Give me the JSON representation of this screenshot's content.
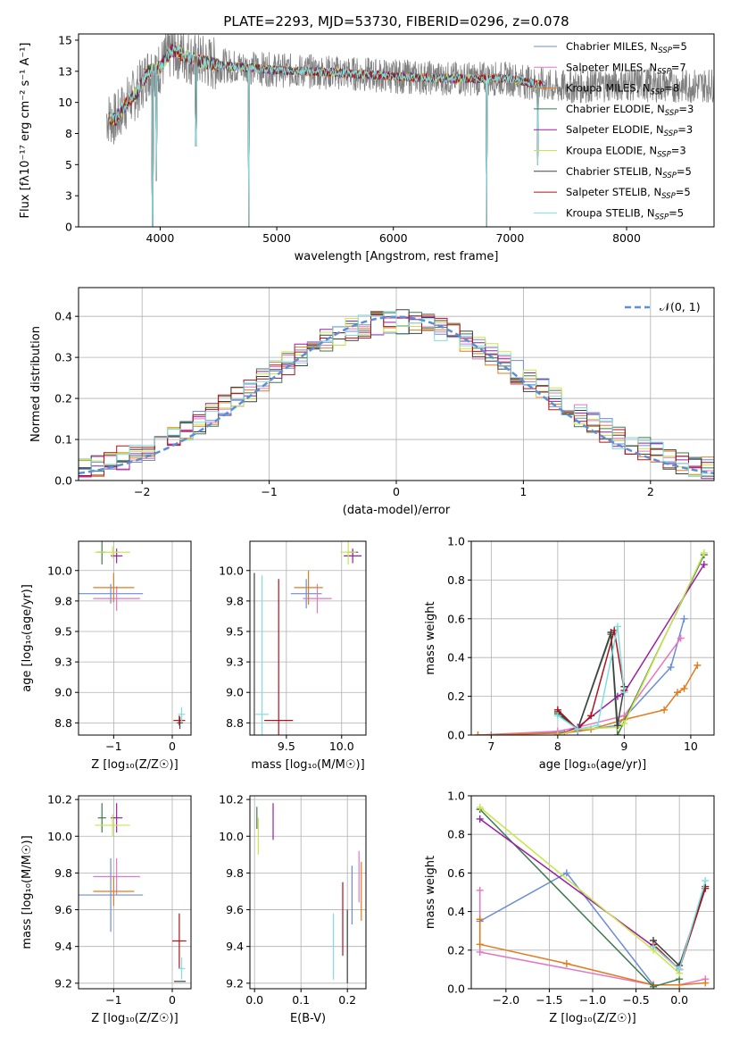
{
  "figure_title": "PLATE=2293, MJD=53730, FIBERID=0296, z=0.078",
  "colors": {
    "Chabrier MILES": "#6b8dd6",
    "Salpeter MILES": "#e377c2",
    "Kroupa MILES": "#e07b20",
    "Chabrier ELODIE": "#3d7a4e",
    "Salpeter ELODIE": "#9a1fa3",
    "Kroupa ELODIE": "#c8e64a",
    "Chabrier STELIB": "#404040",
    "Salpeter STELIB": "#b0121b",
    "Kroupa STELIB": "#7fdde0",
    "data": "#808080",
    "normal": "#5b8fd6",
    "grid": "#b0b0b0"
  },
  "chart_data": [
    {
      "id": "spectrum",
      "type": "line",
      "title": "PLATE=2293, MJD=53730, FIBERID=0296, z=0.078",
      "xlabel": "wavelength [Angstrom, rest frame]",
      "ylabel": "Flux [fλ10⁻¹⁷ erg cm⁻² s⁻¹ A⁻¹]",
      "xlim": [
        3300,
        8750
      ],
      "ylim": [
        0,
        15.5
      ],
      "xticks": [
        4000,
        5000,
        6000,
        7000,
        8000
      ],
      "yticks": [
        0.0,
        2.5,
        5.0,
        7.5,
        10.0,
        12.5,
        15.0
      ],
      "grid": false,
      "legend_position": "right",
      "legend": [
        {
          "model": "Chabrier MILES",
          "label": "Chabrier MILES, N",
          "sub": "SSP",
          "tail": "=5"
        },
        {
          "model": "Salpeter MILES",
          "label": "Salpeter MILES, N",
          "sub": "SSP",
          "tail": "=7"
        },
        {
          "model": "Kroupa MILES",
          "label": "Kroupa MILES, N",
          "sub": "SSP",
          "tail": "=8"
        },
        {
          "model": "Chabrier ELODIE",
          "label": "Chabrier ELODIE, N",
          "sub": "SSP",
          "tail": "=3"
        },
        {
          "model": "Salpeter ELODIE",
          "label": "Salpeter ELODIE, N",
          "sub": "SSP",
          "tail": "=3"
        },
        {
          "model": "Kroupa ELODIE",
          "label": "Kroupa ELODIE, N",
          "sub": "SSP",
          "tail": "=3"
        },
        {
          "model": "Chabrier STELIB",
          "label": "Chabrier STELIB, N",
          "sub": "SSP",
          "tail": "=5"
        },
        {
          "model": "Salpeter STELIB",
          "label": "Salpeter STELIB, N",
          "sub": "SSP",
          "tail": "=5"
        },
        {
          "model": "Kroupa STELIB",
          "label": "Kroupa STELIB, N",
          "sub": "SSP",
          "tail": "=5"
        }
      ],
      "continuum": [
        [
          3550,
          8.8
        ],
        [
          3620,
          8.6
        ],
        [
          3700,
          9.8
        ],
        [
          3800,
          10.8
        ],
        [
          3900,
          12.5
        ],
        [
          4000,
          12.8
        ],
        [
          4100,
          14.2
        ],
        [
          4300,
          13.4
        ],
        [
          4500,
          13.0
        ],
        [
          5000,
          12.6
        ],
        [
          5500,
          12.4
        ],
        [
          6000,
          12.1
        ],
        [
          6500,
          11.9
        ],
        [
          7000,
          11.9
        ],
        [
          7400,
          11.2
        ],
        [
          8000,
          11.5
        ],
        [
          8500,
          11.3
        ],
        [
          8750,
          11.4
        ]
      ],
      "dips": [
        [
          3933,
          0
        ],
        [
          4760,
          0
        ],
        [
          6800,
          0
        ],
        [
          4305,
          6.5
        ],
        [
          3968,
          3.7
        ],
        [
          7238,
          5.0
        ]
      ]
    },
    {
      "id": "residuals",
      "type": "histogram",
      "xlabel": "(data-model)/error",
      "ylabel": "Normed distribution",
      "xlim": [
        -2.5,
        2.5
      ],
      "ylim": [
        0,
        0.47
      ],
      "xticks": [
        -2,
        -1,
        0,
        1,
        2
      ],
      "yticks": [
        0.0,
        0.1,
        0.2,
        0.3,
        0.4
      ],
      "grid": true,
      "legend_position": "top-right",
      "reference": {
        "label": "𝒩(0, 1)",
        "mean": 0,
        "sigma": 1
      },
      "bin_width": 0.1
    },
    {
      "id": "age-vs-Z",
      "type": "errorbar",
      "xlabel": "Z [log₁₀(Z/Z☉)]",
      "ylabel": "age  [log₁₀(age/yr)]",
      "xlim": [
        -1.6,
        0.32
      ],
      "ylim": [
        8.65,
        10.24
      ],
      "xticks": [
        -1,
        0
      ],
      "yticks": [
        8.75,
        9.0,
        9.25,
        9.5,
        9.75,
        10.0
      ],
      "grid": true,
      "points": [
        {
          "model": "Chabrier MILES",
          "x": -1.05,
          "y": 9.81,
          "xerr": 0.55,
          "yerr": 0.08
        },
        {
          "model": "Salpeter MILES",
          "x": -0.95,
          "y": 9.77,
          "xerr": 0.4,
          "yerr": 0.1
        },
        {
          "model": "Kroupa MILES",
          "x": -1.0,
          "y": 9.86,
          "xerr": 0.35,
          "yerr": 0.12
        },
        {
          "model": "Chabrier ELODIE",
          "x": -1.2,
          "y": 10.15,
          "xerr": 0.07,
          "yerr": 0.1
        },
        {
          "model": "Salpeter ELODIE",
          "x": -0.95,
          "y": 10.12,
          "xerr": 0.1,
          "yerr": 0.06
        },
        {
          "model": "Kroupa ELODIE",
          "x": -1.02,
          "y": 10.15,
          "xerr": 0.3,
          "yerr": 0.05
        },
        {
          "model": "Chabrier STELIB",
          "x": 0.13,
          "y": 8.75,
          "xerr": 0.05,
          "yerr": 0.05
        },
        {
          "model": "Salpeter STELIB",
          "x": 0.12,
          "y": 8.77,
          "xerr": 0.1,
          "yerr": 0.04
        },
        {
          "model": "Kroupa STELIB",
          "x": 0.16,
          "y": 8.82,
          "xerr": 0.06,
          "yerr": 0.06
        }
      ]
    },
    {
      "id": "age-vs-mass",
      "type": "errorbar",
      "xlabel": "mass [log₁₀(M/M☉)]",
      "ylabel": "",
      "xlim": [
        9.17,
        10.22
      ],
      "ylim": [
        8.65,
        10.24
      ],
      "xticks": [
        9.5,
        10.0
      ],
      "yticks": [
        8.75,
        9.0,
        9.25,
        9.5,
        9.75,
        10.0
      ],
      "grid": true,
      "points": [
        {
          "model": "Chabrier MILES",
          "x": 9.68,
          "y": 9.81,
          "xerr": 0.14,
          "yerr": 0.12
        },
        {
          "model": "Salpeter MILES",
          "x": 9.78,
          "y": 9.77,
          "xerr": 0.13,
          "yerr": 0.12
        },
        {
          "model": "Kroupa MILES",
          "x": 9.7,
          "y": 9.86,
          "xerr": 0.13,
          "yerr": 0.14
        },
        {
          "model": "Chabrier ELODIE",
          "x": 10.1,
          "y": 10.15,
          "xerr": 0.05,
          "yerr": 0.02
        },
        {
          "model": "Salpeter ELODIE",
          "x": 10.1,
          "y": 10.12,
          "xerr": 0.08,
          "yerr": 0.06
        },
        {
          "model": "Kroupa ELODIE",
          "x": 10.06,
          "y": 10.15,
          "xerr": 0.07,
          "yerr": 0.1
        },
        {
          "model": "Chabrier STELIB",
          "x": 9.21,
          "y": 8.75,
          "xerr": 0.0,
          "yerr": 1.23
        },
        {
          "model": "Salpeter STELIB",
          "x": 9.43,
          "y": 8.77,
          "xerr": 0.13,
          "yerr": 1.16
        },
        {
          "model": "Kroupa STELIB",
          "x": 9.28,
          "y": 8.82,
          "xerr": 0.06,
          "yerr": 1.14
        }
      ]
    },
    {
      "id": "weight-vs-age",
      "type": "line",
      "xlabel": "age  [log₁₀(age/yr)]",
      "ylabel": "mass weight",
      "xlim": [
        6.7,
        10.35
      ],
      "ylim": [
        0,
        1.0
      ],
      "xticks": [
        7,
        8,
        9,
        10
      ],
      "yticks": [
        0.0,
        0.2,
        0.4,
        0.6,
        0.8,
        1.0
      ],
      "grid": true,
      "series": [
        {
          "model": "Chabrier MILES",
          "x": [
            7.0,
            8.3,
            8.9,
            9.7,
            9.9
          ],
          "y": [
            0.0,
            0.02,
            0.05,
            0.35,
            0.6
          ]
        },
        {
          "model": "Salpeter MILES",
          "x": [
            6.8,
            8.0,
            8.3,
            9.0,
            9.85
          ],
          "y": [
            0.0,
            0.02,
            0.04,
            0.1,
            0.5
          ]
        },
        {
          "model": "Kroupa MILES",
          "x": [
            6.8,
            8.1,
            8.5,
            9.0,
            9.6,
            9.8,
            9.9,
            10.1
          ],
          "y": [
            0.0,
            0.01,
            0.03,
            0.08,
            0.13,
            0.22,
            0.24,
            0.36
          ]
        },
        {
          "model": "Chabrier ELODIE",
          "x": [
            8.0,
            8.3,
            8.8,
            8.9,
            10.2
          ],
          "y": [
            0.11,
            0.03,
            0.52,
            0.0,
            0.93
          ]
        },
        {
          "model": "Salpeter ELODIE",
          "x": [
            8.0,
            8.3,
            8.9,
            9.0,
            10.2
          ],
          "y": [
            0.0,
            0.04,
            0.2,
            0.22,
            0.88
          ]
        },
        {
          "model": "Kroupa ELODIE",
          "x": [
            8.0,
            8.3,
            8.9,
            9.0,
            10.2
          ],
          "y": [
            0.0,
            0.03,
            0.04,
            0.06,
            0.94
          ]
        },
        {
          "model": "Chabrier STELIB",
          "x": [
            8.0,
            8.3,
            8.8,
            8.9,
            9.0
          ],
          "y": [
            0.12,
            0.03,
            0.53,
            0.05,
            0.25
          ]
        },
        {
          "model": "Salpeter STELIB",
          "x": [
            8.0,
            8.3,
            8.5,
            8.85,
            9.0
          ],
          "y": [
            0.13,
            0.03,
            0.1,
            0.54,
            0.23
          ]
        },
        {
          "model": "Kroupa STELIB",
          "x": [
            8.0,
            8.3,
            8.6,
            8.9,
            9.0
          ],
          "y": [
            0.1,
            0.03,
            0.05,
            0.56,
            0.22
          ]
        }
      ]
    },
    {
      "id": "mass-vs-Z",
      "type": "errorbar",
      "xlabel": "Z [log₁₀(Z/Z☉)]",
      "ylabel": "mass [log₁₀(M/M☉)]",
      "xlim": [
        -1.6,
        0.32
      ],
      "ylim": [
        9.17,
        10.22
      ],
      "xticks": [
        -1,
        0
      ],
      "yticks": [
        9.2,
        9.4,
        9.6,
        9.8,
        10.0,
        10.2
      ],
      "grid": true,
      "points": [
        {
          "model": "Chabrier MILES",
          "x": -1.05,
          "y": 9.68,
          "xerr": 0.55,
          "yerr": 0.2
        },
        {
          "model": "Salpeter MILES",
          "x": -0.95,
          "y": 9.78,
          "xerr": 0.4,
          "yerr": 0.1
        },
        {
          "model": "Kroupa MILES",
          "x": -1.0,
          "y": 9.7,
          "xerr": 0.35,
          "yerr": 0.08
        },
        {
          "model": "Chabrier ELODIE",
          "x": -1.2,
          "y": 10.1,
          "xerr": 0.07,
          "yerr": 0.08
        },
        {
          "model": "Salpeter ELODIE",
          "x": -0.95,
          "y": 10.1,
          "xerr": 0.1,
          "yerr": 0.08
        },
        {
          "model": "Kroupa ELODIE",
          "x": -1.02,
          "y": 10.06,
          "xerr": 0.3,
          "yerr": 0.06
        },
        {
          "model": "Chabrier STELIB",
          "x": 0.13,
          "y": 9.21,
          "xerr": 0.1,
          "yerr": 0.0
        },
        {
          "model": "Salpeter STELIB",
          "x": 0.12,
          "y": 9.43,
          "xerr": 0.12,
          "yerr": 0.15
        },
        {
          "model": "Kroupa STELIB",
          "x": 0.16,
          "y": 9.28,
          "xerr": 0.06,
          "yerr": 0.06
        }
      ]
    },
    {
      "id": "mass-vs-EBV",
      "type": "errorbar",
      "xlabel": "E(B-V)",
      "ylabel": "",
      "xlim": [
        -0.01,
        0.24
      ],
      "ylim": [
        9.17,
        10.22
      ],
      "xticks": [
        0.0,
        0.1,
        0.2
      ],
      "yticks": [
        9.2,
        9.4,
        9.6,
        9.8,
        10.0,
        10.2
      ],
      "grid": true,
      "points": [
        {
          "model": "Chabrier MILES",
          "x": 0.21,
          "y": 9.68,
          "xerr": 0.0,
          "yerr": 0.16
        },
        {
          "model": "Salpeter MILES",
          "x": 0.225,
          "y": 9.78,
          "xerr": 0.0,
          "yerr": 0.14
        },
        {
          "model": "Kroupa MILES",
          "x": 0.23,
          "y": 9.7,
          "xerr": 0.0,
          "yerr": 0.16
        },
        {
          "model": "Chabrier ELODIE",
          "x": 0.005,
          "y": 10.1,
          "xerr": 0.0,
          "yerr": 0.06
        },
        {
          "model": "Salpeter ELODIE",
          "x": 0.04,
          "y": 10.08,
          "xerr": 0.0,
          "yerr": 0.1
        },
        {
          "model": "Kroupa ELODIE",
          "x": 0.008,
          "y": 10.0,
          "xerr": 0.0,
          "yerr": 0.1
        },
        {
          "model": "Chabrier STELIB",
          "x": 0.2,
          "y": 9.4,
          "xerr": 0.0,
          "yerr": 0.2
        },
        {
          "model": "Salpeter STELIB",
          "x": 0.19,
          "y": 9.55,
          "xerr": 0.0,
          "yerr": 0.2
        },
        {
          "model": "Kroupa STELIB",
          "x": 0.17,
          "y": 9.4,
          "xerr": 0.0,
          "yerr": 0.18
        }
      ]
    },
    {
      "id": "weight-vs-Z",
      "type": "line",
      "xlabel": "Z [log₁₀(Z/Z☉)]",
      "ylabel": "mass weight",
      "xlim": [
        -2.4,
        0.4
      ],
      "ylim": [
        0,
        1.0
      ],
      "xticks": [
        -2.0,
        -1.5,
        -1.0,
        -0.5,
        0.0
      ],
      "yticks": [
        0.0,
        0.2,
        0.4,
        0.6,
        0.8,
        1.0
      ],
      "grid": true,
      "series": [
        {
          "model": "Chabrier MILES",
          "x": [
            -2.3,
            -1.3,
            -0.3,
            0.0
          ],
          "y": [
            0.35,
            0.6,
            0.02,
            0.02
          ]
        },
        {
          "model": "Salpeter MILES",
          "x": [
            -2.3,
            -2.3,
            -0.3,
            0.0,
            0.3
          ],
          "y": [
            0.51,
            0.19,
            0.02,
            0.02,
            0.05
          ]
        },
        {
          "model": "Kroupa MILES",
          "x": [
            -2.3,
            -2.3,
            -1.3,
            -0.3,
            0.0,
            0.3
          ],
          "y": [
            0.36,
            0.23,
            0.13,
            0.02,
            0.02,
            0.03
          ]
        },
        {
          "model": "Chabrier ELODIE",
          "x": [
            -2.3,
            -0.3,
            0.0
          ],
          "y": [
            0.93,
            0.01,
            0.05
          ]
        },
        {
          "model": "Salpeter ELODIE",
          "x": [
            -2.3,
            -0.3,
            0.0
          ],
          "y": [
            0.88,
            0.22,
            0.1
          ]
        },
        {
          "model": "Kroupa ELODIE",
          "x": [
            -2.3,
            -0.3,
            0.0
          ],
          "y": [
            0.94,
            0.2,
            0.08
          ]
        },
        {
          "model": "Chabrier STELIB",
          "x": [
            -0.3,
            0.0,
            0.3
          ],
          "y": [
            0.25,
            0.12,
            0.53
          ]
        },
        {
          "model": "Salpeter STELIB",
          "x": [
            -0.3,
            0.0,
            0.3
          ],
          "y": [
            0.23,
            0.1,
            0.52
          ]
        },
        {
          "model": "Kroupa STELIB",
          "x": [
            -0.3,
            0.0,
            0.3
          ],
          "y": [
            0.22,
            0.1,
            0.56
          ]
        }
      ]
    }
  ]
}
